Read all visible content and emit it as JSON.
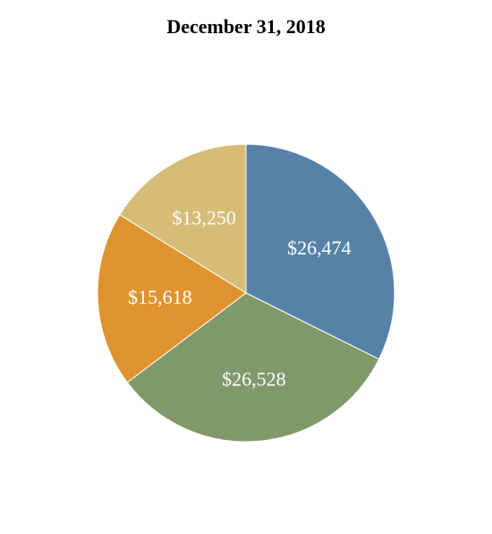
{
  "chart_data": {
    "type": "pie",
    "title": "December 31, 2018",
    "start_angle_deg": 0,
    "direction": "clockwise",
    "legend": "none",
    "slices": [
      {
        "label": "$26,474",
        "value": 26474,
        "color": "#5682a8"
      },
      {
        "label": "$26,528",
        "value": 26528,
        "color": "#80996a"
      },
      {
        "label": "$15,618",
        "value": 15618,
        "color": "#df932e"
      },
      {
        "label": "$13,250",
        "value": 13250,
        "color": "#d6bc76"
      }
    ]
  }
}
